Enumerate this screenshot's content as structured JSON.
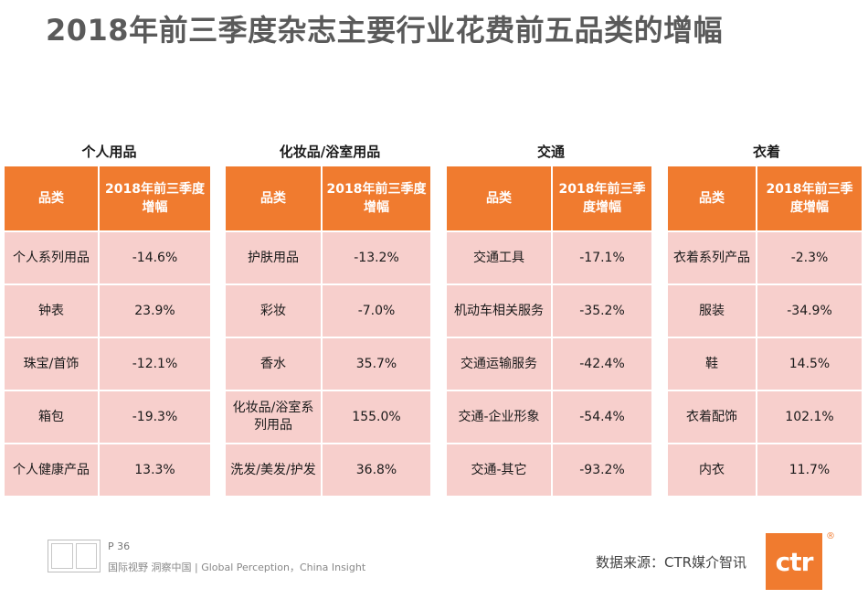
{
  "title": "2018年前三季度杂志主要行业花费前五品类的增幅",
  "table_header": {
    "col1": "品类",
    "col2": "2018年前三季度增幅"
  },
  "panels": [
    {
      "title": "个人用品",
      "rows": [
        {
          "category": "个人系列用品",
          "value": "-14.6%"
        },
        {
          "category": "钟表",
          "value": "23.9%"
        },
        {
          "category": "珠宝/首饰",
          "value": "-12.1%"
        },
        {
          "category": "箱包",
          "value": "-19.3%"
        },
        {
          "category": "个人健康产品",
          "value": "13.3%"
        }
      ]
    },
    {
      "title": "化妆品/浴室用品",
      "rows": [
        {
          "category": "护肤用品",
          "value": "-13.2%"
        },
        {
          "category": "彩妆",
          "value": "-7.0%"
        },
        {
          "category": "香水",
          "value": "35.7%"
        },
        {
          "category": "化妆品/浴室系列用品",
          "value": "155.0%"
        },
        {
          "category": "洗发/美发/护发",
          "value": "36.8%"
        }
      ]
    },
    {
      "title": "交通",
      "rows": [
        {
          "category": "交通工具",
          "value": "-17.1%"
        },
        {
          "category": "机动车相关服务",
          "value": "-35.2%"
        },
        {
          "category": "交通运输服务",
          "value": "-42.4%"
        },
        {
          "category": "交通-企业形象",
          "value": "-54.4%"
        },
        {
          "category": "交通-其它",
          "value": "-93.2%"
        }
      ]
    },
    {
      "title": "衣着",
      "rows": [
        {
          "category": "衣着系列产品",
          "value": "-2.3%"
        },
        {
          "category": "服装",
          "value": "-34.9%"
        },
        {
          "category": "鞋",
          "value": "14.5%"
        },
        {
          "category": "衣着配饰",
          "value": "102.1%"
        },
        {
          "category": "内衣",
          "value": "11.7%"
        }
      ]
    }
  ],
  "footer": {
    "page_number": "P 36",
    "tagline": "国际视野  洞察中国 |  Global Perception，China Insight",
    "source": "数据来源：CTR媒介智讯",
    "logo_text": "ctr",
    "logo_mark": "®"
  },
  "colors": {
    "header_bg": "#f07b2f",
    "cell_bg": "#f7cfcc",
    "title": "#5a5a5a"
  }
}
